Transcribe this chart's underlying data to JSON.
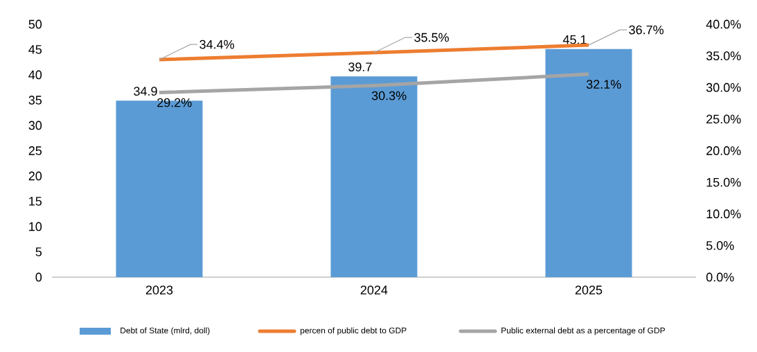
{
  "chart_data": {
    "type": "bar",
    "categories": [
      "2023",
      "2024",
      "2025"
    ],
    "series": [
      {
        "name": "Debt of State (mlrd, doll)",
        "color": "#5b9bd5",
        "values": [
          34.9,
          39.7,
          45.1
        ],
        "value_labels": [
          "34.9",
          "39.7",
          "45.1"
        ]
      },
      {
        "name": "percen of public debt to GDP",
        "type": "line",
        "axis": "y2",
        "color": "#ed7d31",
        "values": [
          34.4,
          35.5,
          36.7
        ],
        "value_labels": [
          "34.4%",
          "35.5%",
          "36.7%"
        ]
      },
      {
        "name": "Public external debt as a percentage of GDP",
        "type": "line",
        "axis": "y2",
        "color": "#a5a5a5",
        "values": [
          29.2,
          30.3,
          32.1
        ],
        "value_labels": [
          "29.2%",
          "30.3%",
          "32.1%"
        ]
      }
    ],
    "ylim": [
      0,
      50
    ],
    "yticks": [
      0,
      5,
      10,
      15,
      20,
      25,
      30,
      35,
      40,
      45,
      50
    ],
    "y2lim": [
      0,
      40
    ],
    "y2ticks": [
      {
        "value": 0,
        "label": "0.0%"
      },
      {
        "value": 5,
        "label": "5.0%"
      },
      {
        "value": 10,
        "label": "10.0%"
      },
      {
        "value": 15,
        "label": "15.0%"
      },
      {
        "value": 20,
        "label": "20.0%"
      },
      {
        "value": 25,
        "label": "25.0%"
      },
      {
        "value": 30,
        "label": "30.0%"
      },
      {
        "value": 35,
        "label": "35.0%"
      },
      {
        "value": 40,
        "label": "40.0%"
      }
    ],
    "legend": "bottom",
    "marker": "none",
    "line_style": "solid"
  }
}
